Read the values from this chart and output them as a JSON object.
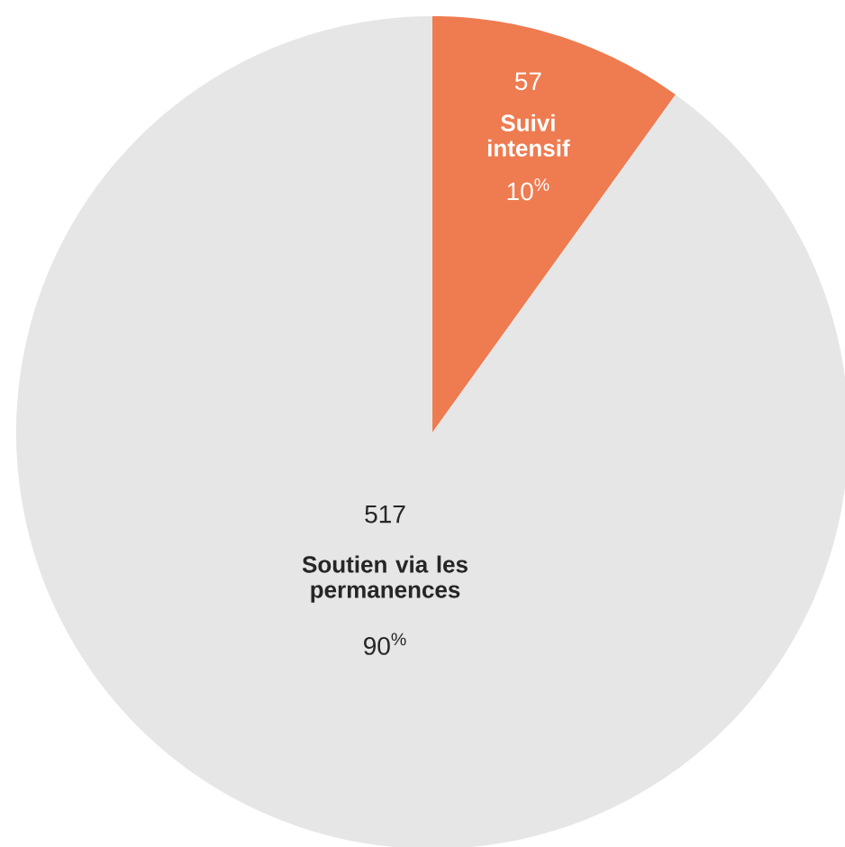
{
  "chart_data": {
    "type": "pie",
    "categories": [
      "Suivi intensif",
      "Soutien via les permanences"
    ],
    "values": [
      57,
      517
    ],
    "colors": [
      "#ef7b50",
      "#e6e6e6"
    ],
    "data_labels": true,
    "annotations": [
      "10$^{%}$",
      "90$^{%}$"
    ]
  }
}
